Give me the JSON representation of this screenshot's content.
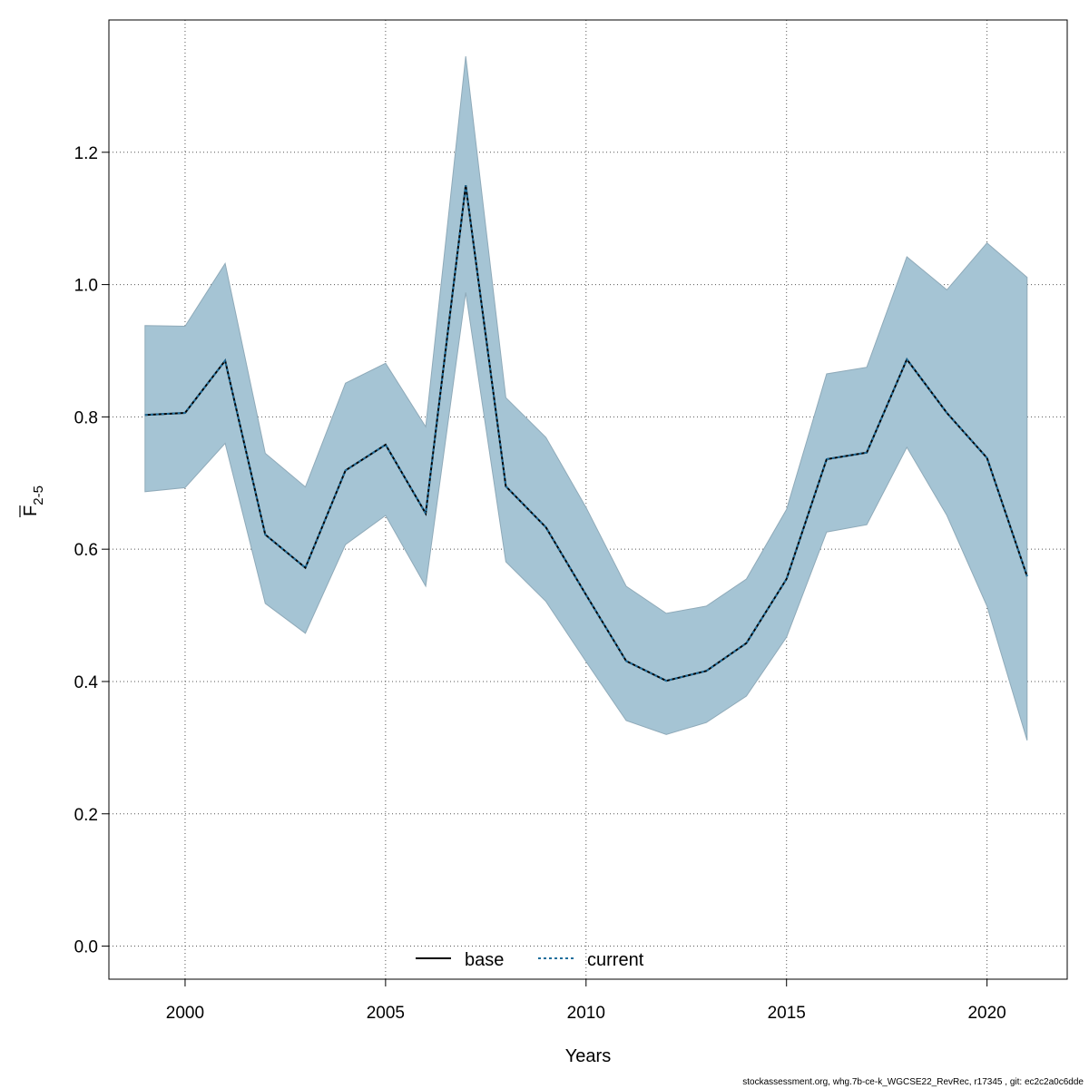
{
  "chart_data": {
    "type": "area",
    "xlabel": "Years",
    "ylabel": {
      "main": "F",
      "subscript": "2-5"
    },
    "xlim": [
      1998.1,
      2022.0
    ],
    "ylim": [
      -0.05,
      1.4
    ],
    "xticks": [
      "2000",
      "2005",
      "2010",
      "2015",
      "2020"
    ],
    "yticks": [
      "0.0",
      "0.2",
      "0.4",
      "0.6",
      "0.8",
      "1.0",
      "1.2"
    ],
    "grid": true,
    "legend_position": "bottom",
    "x": [
      1999,
      2000,
      2001,
      2002,
      2003,
      2004,
      2005,
      2006,
      2007,
      2008,
      2009,
      2010,
      2011,
      2012,
      2013,
      2014,
      2015,
      2016,
      2017,
      2018,
      2019,
      2020,
      2021
    ],
    "band": {
      "upper": [
        0.938,
        0.937,
        1.032,
        0.745,
        0.694,
        0.851,
        0.881,
        0.785,
        1.345,
        0.829,
        0.769,
        0.663,
        0.544,
        0.503,
        0.514,
        0.555,
        0.66,
        0.865,
        0.875,
        1.042,
        0.992,
        1.063,
        1.011
      ],
      "lower": [
        0.687,
        0.693,
        0.76,
        0.518,
        0.473,
        0.607,
        0.651,
        0.544,
        0.988,
        0.581,
        0.521,
        0.43,
        0.341,
        0.32,
        0.338,
        0.378,
        0.467,
        0.626,
        0.637,
        0.754,
        0.651,
        0.514,
        0.311
      ]
    },
    "series": [
      {
        "name": "base",
        "values": [
          0.803,
          0.806,
          0.885,
          0.622,
          0.572,
          0.719,
          0.758,
          0.654,
          1.15,
          0.695,
          0.633,
          0.531,
          0.431,
          0.401,
          0.416,
          0.458,
          0.555,
          0.736,
          0.746,
          0.887,
          0.806,
          0.738,
          0.559
        ]
      },
      {
        "name": "current",
        "values": [
          0.803,
          0.806,
          0.885,
          0.622,
          0.572,
          0.719,
          0.758,
          0.654,
          1.15,
          0.695,
          0.633,
          0.531,
          0.431,
          0.401,
          0.416,
          0.458,
          0.555,
          0.736,
          0.746,
          0.887,
          0.806,
          0.738,
          0.559
        ]
      }
    ],
    "colors": {
      "band_fill": "#a5c4d4",
      "band_edge": "#8faab9",
      "base": "#000000",
      "current": "#1f6e9c",
      "grid": "#555555"
    }
  },
  "footer": "stockassessment.org, whg.7b-ce-k_WGCSE22_RevRec, r17345 , git: ec2c2a0c6dde"
}
